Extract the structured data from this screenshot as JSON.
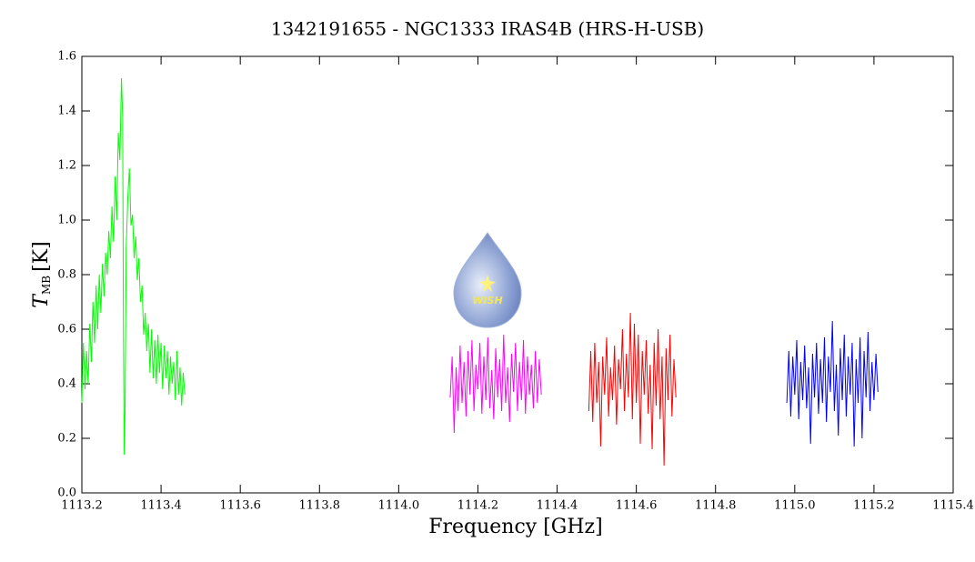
{
  "chart_data": {
    "type": "line",
    "title": "1342191655 - NGC1333 IRAS4B (HRS-H-USB)",
    "x_label": "Frequency [GHz]",
    "y_label": "T",
    "y_label_subscript": "MB",
    "y_label_unit": "[K]",
    "logo_text": "WISH",
    "xlim": [
      1113.2,
      1115.4
    ],
    "xticks": [
      1113.2,
      1113.4,
      1113.6,
      1113.8,
      {
        "value": 1114,
        "label": "1114.0"
      },
      1114.2,
      1114.4,
      1114.6,
      1114.8,
      {
        "value": 1115,
        "label": "1115.0"
      },
      1115.2,
      1115.4
    ],
    "ylim": [
      0,
      1.6
    ],
    "yticks": [
      {
        "value": 0,
        "label": "0.0"
      },
      0.2,
      0.4,
      0.6,
      0.8,
      {
        "value": 1,
        "label": "1.0"
      },
      1.2,
      1.4,
      1.6
    ],
    "series": [
      {
        "color": "#00ff00",
        "x": [
          1113.2,
          1113.204,
          1113.208,
          1113.212,
          1113.216,
          1113.22,
          1113.224,
          1113.228,
          1113.232,
          1113.236,
          1113.24,
          1113.244,
          1113.248,
          1113.252,
          1113.256,
          1113.26,
          1113.264,
          1113.268,
          1113.272,
          1113.276,
          1113.28,
          1113.284,
          1113.288,
          1113.292,
          1113.296,
          1113.3,
          1113.303,
          1113.305,
          1113.307,
          1113.309,
          1113.312,
          1113.316,
          1113.32,
          1113.324,
          1113.328,
          1113.332,
          1113.336,
          1113.34,
          1113.344,
          1113.348,
          1113.352,
          1113.356,
          1113.36,
          1113.364,
          1113.368,
          1113.372,
          1113.376,
          1113.38,
          1113.384,
          1113.388,
          1113.392,
          1113.396,
          1113.4,
          1113.404,
          1113.408,
          1113.412,
          1113.416,
          1113.42,
          1113.424,
          1113.428,
          1113.432,
          1113.436,
          1113.44,
          1113.444,
          1113.448,
          1113.452,
          1113.456,
          1113.46
        ],
        "values": [
          0.33,
          0.55,
          0.38,
          0.52,
          0.4,
          0.62,
          0.48,
          0.7,
          0.55,
          0.76,
          0.6,
          0.8,
          0.66,
          0.84,
          0.72,
          0.88,
          0.8,
          0.96,
          0.86,
          1.05,
          0.92,
          1.16,
          1.0,
          1.32,
          1.22,
          1.52,
          1.38,
          0.6,
          0.14,
          0.3,
          0.9,
          1.08,
          1.19,
          0.98,
          1.02,
          0.86,
          0.94,
          0.78,
          0.86,
          0.7,
          0.76,
          0.58,
          0.66,
          0.52,
          0.62,
          0.44,
          0.6,
          0.42,
          0.56,
          0.4,
          0.58,
          0.44,
          0.55,
          0.38,
          0.54,
          0.42,
          0.52,
          0.36,
          0.5,
          0.4,
          0.48,
          0.34,
          0.52,
          0.36,
          0.46,
          0.32,
          0.44,
          0.36
        ]
      },
      {
        "color": "#ff00ff",
        "x": [
          1114.13,
          1114.135,
          1114.14,
          1114.145,
          1114.15,
          1114.155,
          1114.16,
          1114.165,
          1114.17,
          1114.175,
          1114.18,
          1114.185,
          1114.19,
          1114.195,
          1114.2,
          1114.205,
          1114.21,
          1114.215,
          1114.22,
          1114.225,
          1114.23,
          1114.235,
          1114.24,
          1114.245,
          1114.25,
          1114.255,
          1114.26,
          1114.265,
          1114.27,
          1114.275,
          1114.28,
          1114.285,
          1114.29,
          1114.295,
          1114.3,
          1114.305,
          1114.31,
          1114.315,
          1114.32,
          1114.325,
          1114.33,
          1114.335,
          1114.34,
          1114.345,
          1114.35,
          1114.355,
          1114.36
        ],
        "values": [
          0.35,
          0.5,
          0.22,
          0.46,
          0.3,
          0.54,
          0.33,
          0.48,
          0.28,
          0.52,
          0.36,
          0.56,
          0.3,
          0.47,
          0.38,
          0.55,
          0.29,
          0.5,
          0.34,
          0.57,
          0.31,
          0.45,
          0.27,
          0.53,
          0.35,
          0.49,
          0.3,
          0.58,
          0.33,
          0.46,
          0.26,
          0.51,
          0.37,
          0.55,
          0.3,
          0.48,
          0.34,
          0.56,
          0.29,
          0.5,
          0.36,
          0.47,
          0.31,
          0.52,
          0.33,
          0.49,
          0.36
        ]
      },
      {
        "color": "#ff0000",
        "x": [
          1114.48,
          1114.485,
          1114.49,
          1114.495,
          1114.5,
          1114.505,
          1114.51,
          1114.515,
          1114.52,
          1114.525,
          1114.53,
          1114.535,
          1114.54,
          1114.545,
          1114.55,
          1114.555,
          1114.56,
          1114.565,
          1114.57,
          1114.575,
          1114.58,
          1114.585,
          1114.59,
          1114.595,
          1114.6,
          1114.605,
          1114.61,
          1114.615,
          1114.62,
          1114.625,
          1114.63,
          1114.635,
          1114.64,
          1114.645,
          1114.65,
          1114.655,
          1114.66,
          1114.665,
          1114.67,
          1114.675,
          1114.68,
          1114.685,
          1114.69,
          1114.695,
          1114.7
        ],
        "values": [
          0.3,
          0.52,
          0.26,
          0.55,
          0.33,
          0.48,
          0.17,
          0.5,
          0.36,
          0.57,
          0.28,
          0.46,
          0.34,
          0.54,
          0.25,
          0.49,
          0.38,
          0.6,
          0.3,
          0.51,
          0.35,
          0.66,
          0.27,
          0.62,
          0.33,
          0.58,
          0.18,
          0.52,
          0.36,
          0.56,
          0.29,
          0.47,
          0.16,
          0.55,
          0.32,
          0.6,
          0.27,
          0.5,
          0.1,
          0.53,
          0.34,
          0.58,
          0.28,
          0.49,
          0.35
        ]
      },
      {
        "color": "#0000ff",
        "x": [
          1114.98,
          1114.985,
          1114.99,
          1114.995,
          1115,
          1115.005,
          1115.01,
          1115.015,
          1115.02,
          1115.025,
          1115.03,
          1115.035,
          1115.04,
          1115.045,
          1115.05,
          1115.055,
          1115.06,
          1115.065,
          1115.07,
          1115.075,
          1115.08,
          1115.085,
          1115.09,
          1115.095,
          1115.1,
          1115.105,
          1115.11,
          1115.115,
          1115.12,
          1115.125,
          1115.13,
          1115.135,
          1115.14,
          1115.145,
          1115.15,
          1115.155,
          1115.16,
          1115.165,
          1115.17,
          1115.175,
          1115.18,
          1115.185,
          1115.19,
          1115.195,
          1115.2,
          1115.205,
          1115.21
        ],
        "values": [
          0.33,
          0.52,
          0.28,
          0.5,
          0.36,
          0.56,
          0.27,
          0.48,
          0.34,
          0.54,
          0.31,
          0.46,
          0.18,
          0.51,
          0.35,
          0.55,
          0.29,
          0.49,
          0.33,
          0.57,
          0.26,
          0.5,
          0.37,
          0.63,
          0.3,
          0.47,
          0.21,
          0.53,
          0.34,
          0.58,
          0.28,
          0.5,
          0.36,
          0.55,
          0.17,
          0.49,
          0.33,
          0.57,
          0.2,
          0.52,
          0.35,
          0.59,
          0.3,
          0.48,
          0.34,
          0.51,
          0.37
        ]
      }
    ]
  }
}
